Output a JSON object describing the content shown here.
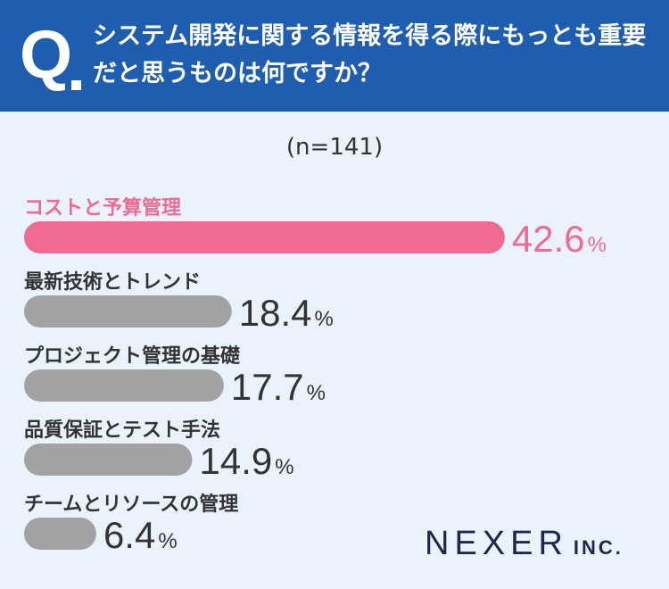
{
  "question": {
    "mark": "Q",
    "text": "システム開発に関する情報を得る際にもっとも重要だと思うものは何ですか？"
  },
  "sample": "(n=141)",
  "chart_data": {
    "type": "bar",
    "orientation": "horizontal",
    "categories": [
      "コストと予算管理",
      "最新技術とトレンド",
      "プロジェクト管理の基礎",
      "品質保証とテスト手法",
      "チームとリソースの管理"
    ],
    "values": [
      42.6,
      18.4,
      17.7,
      14.9,
      6.4
    ],
    "unit": "%",
    "highlight_index": 0,
    "colors": {
      "highlight": "#f06a92",
      "default": "#a2a2a4",
      "highlight_text": "#f06a92",
      "default_text": "#333333"
    }
  },
  "logo": {
    "main": "NEXER",
    "sub": "INC."
  }
}
